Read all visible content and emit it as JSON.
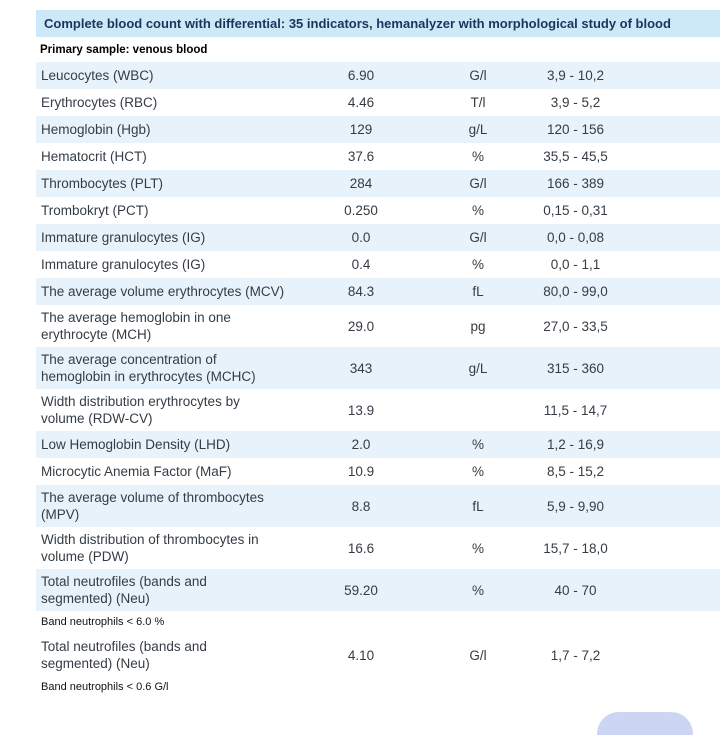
{
  "header": {
    "title": "Complete blood count with differential: 35 indicators, hemanalyzer with morphological study of blood",
    "sample_label": "Primary sample: venous blood"
  },
  "table": {
    "entries": [
      {
        "type": "row",
        "shaded": true,
        "name": "Leucocytes (WBC)",
        "value": "6.90",
        "unit": "G/l",
        "range": "3,9 - 10,2"
      },
      {
        "type": "row",
        "shaded": false,
        "name": "Erythrocytes (RBC)",
        "value": "4.46",
        "unit": "T/l",
        "range": "3,9 - 5,2"
      },
      {
        "type": "row",
        "shaded": true,
        "name": "Hemoglobin (Hgb)",
        "value": "129",
        "unit": "g/L",
        "range": "120 - 156"
      },
      {
        "type": "row",
        "shaded": false,
        "name": "Hematocrit (HCT)",
        "value": "37.6",
        "unit": "%",
        "range": "35,5 - 45,5"
      },
      {
        "type": "row",
        "shaded": true,
        "name": "Thrombocytes (PLT)",
        "value": "284",
        "unit": "G/l",
        "range": "166 - 389"
      },
      {
        "type": "row",
        "shaded": false,
        "name": "Trombokryt (PCT)",
        "value": "0.250",
        "unit": "%",
        "range": "0,15 - 0,31"
      },
      {
        "type": "row",
        "shaded": true,
        "name": "Immature granulocytes (IG)",
        "value": "0.0",
        "unit": "G/l",
        "range": "0,0 - 0,08"
      },
      {
        "type": "row",
        "shaded": false,
        "name": "Immature granulocytes (IG)",
        "value": "0.4",
        "unit": "%",
        "range": "0,0 - 1,1"
      },
      {
        "type": "row",
        "shaded": true,
        "name": "The average volume erythrocytes (MCV)",
        "value": "84.3",
        "unit": "fL",
        "range": "80,0 - 99,0"
      },
      {
        "type": "row",
        "shaded": false,
        "name": "The average hemoglobin in one\nerythrocyte (MCH)",
        "value": "29.0",
        "unit": "pg",
        "range": "27,0 - 33,5"
      },
      {
        "type": "row",
        "shaded": true,
        "name": "The average concentration of\nhemoglobin in erythrocytes (MCHC)",
        "value": "343",
        "unit": "g/L",
        "range": "315 - 360"
      },
      {
        "type": "row",
        "shaded": false,
        "name": "Width distribution erythrocytes by\nvolume (RDW-CV)",
        "value": "13.9",
        "unit": "",
        "range": "11,5 - 14,7"
      },
      {
        "type": "row",
        "shaded": true,
        "name": "Low Hemoglobin Density (LHD)",
        "value": "2.0",
        "unit": "%",
        "range": "1,2 - 16,9"
      },
      {
        "type": "row",
        "shaded": false,
        "name": "Microcytic Anemia Factor (MaF)",
        "value": "10.9",
        "unit": "%",
        "range": "8,5 - 15,2"
      },
      {
        "type": "row",
        "shaded": true,
        "name": "The average volume of thrombocytes\n(MPV)",
        "value": "8.8",
        "unit": "fL",
        "range": "5,9 - 9,90"
      },
      {
        "type": "row",
        "shaded": false,
        "name": "Width distribution of thrombocytes in\nvolume (PDW)",
        "value": "16.6",
        "unit": "%",
        "range": "15,7 - 18,0"
      },
      {
        "type": "row",
        "shaded": true,
        "name": "Total neutrofiles (bands and\nsegmented) (Neu)",
        "value": "59.20",
        "unit": "%",
        "range": "40 - 70"
      },
      {
        "type": "note",
        "text": "Band neutrophils < 6.0 %"
      },
      {
        "type": "row",
        "shaded": false,
        "name": "Total neutrofiles (bands and\nsegmented) (Neu)",
        "value": "4.10",
        "unit": "G/l",
        "range": "1,7 - 7,2"
      },
      {
        "type": "note",
        "text": "Band neutrophils < 0.6 G/l"
      }
    ]
  },
  "colors": {
    "header_bg": "#cde9f7",
    "header_text": "#17365d",
    "row_shade_bg": "#e8f2fa",
    "row_text": "#353c44",
    "chat_bubble": "#ccd6f2"
  }
}
